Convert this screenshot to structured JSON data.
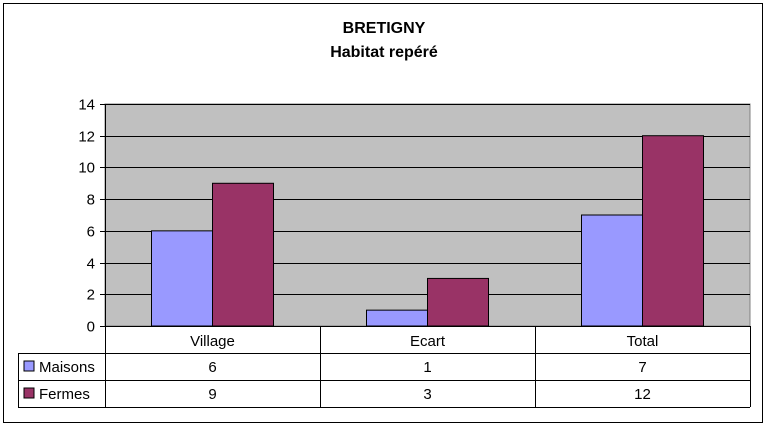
{
  "chart_data": {
    "type": "bar",
    "title": "BRETIGNY",
    "subtitle": "Habitat repéré",
    "categories": [
      "Village",
      "Ecart",
      "Total"
    ],
    "series": [
      {
        "name": "Maisons",
        "values": [
          6,
          1,
          7
        ],
        "color": "#9999ff"
      },
      {
        "name": "Fermes",
        "values": [
          9,
          3,
          12
        ],
        "color": "#993366"
      }
    ],
    "ylim": [
      0,
      14
    ],
    "yticks": [
      0,
      2,
      4,
      6,
      8,
      10,
      12,
      14
    ],
    "grid": true,
    "plot_background": "#c0c0c0",
    "legend": "data-table-below",
    "data_table": true
  }
}
